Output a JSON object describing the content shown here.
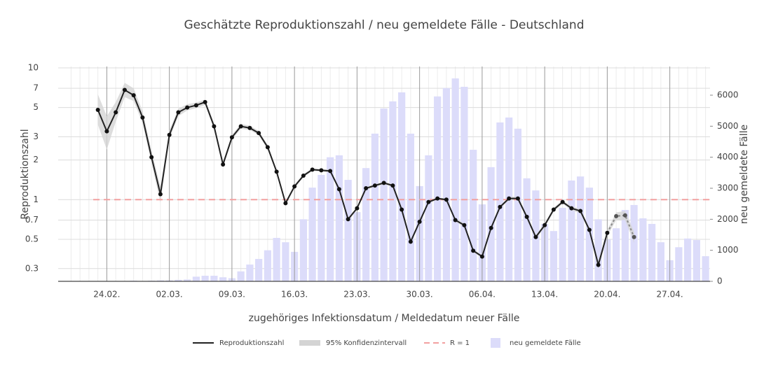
{
  "chart_data": {
    "type": "line_bar",
    "title": "Geschätzte Reproduktionszahl / neu gemeldete Fälle - Deutschland",
    "xlabel": "zugehöriges Infektionsdatum / Meldedatum neuer Fälle",
    "ylabel": "Reproduktionszahl",
    "y2label": "neu gemeldete Fälle",
    "categories": [
      null,
      null,
      null,
      null,
      "24.02.",
      null,
      null,
      null,
      null,
      null,
      null,
      "02.03.",
      null,
      null,
      null,
      null,
      null,
      null,
      "09.03.",
      null,
      null,
      null,
      null,
      null,
      null,
      "16.03.",
      null,
      null,
      null,
      null,
      null,
      null,
      "23.03.",
      null,
      null,
      null,
      null,
      null,
      null,
      "30.03.",
      null,
      null,
      null,
      null,
      null,
      null,
      "06.04.",
      null,
      null,
      null,
      null,
      null,
      null,
      "13.04.",
      null,
      null,
      null,
      null,
      null,
      null,
      "20.04.",
      null,
      null,
      null,
      null,
      null,
      null,
      "27.04.",
      null,
      null,
      null,
      null
    ],
    "series": [
      {
        "name": "Reproduktionszahl",
        "color": "#222222",
        "dash_from": 60,
        "values": [
          null,
          null,
          null,
          4.8,
          3.3,
          4.6,
          6.8,
          6.2,
          4.2,
          2.1,
          1.1,
          3.1,
          4.6,
          5.0,
          5.2,
          5.5,
          3.6,
          1.85,
          2.97,
          3.6,
          3.5,
          3.2,
          2.5,
          1.63,
          0.94,
          1.26,
          1.52,
          1.69,
          1.67,
          1.65,
          1.2,
          0.71,
          0.86,
          1.22,
          1.28,
          1.34,
          1.28,
          0.84,
          0.48,
          0.68,
          0.96,
          1.02,
          1.0,
          0.7,
          0.64,
          0.41,
          0.37,
          0.61,
          0.88,
          1.02,
          1.02,
          0.74,
          0.52,
          0.64,
          0.84,
          0.96,
          0.86,
          0.82,
          0.59,
          0.32,
          0.56,
          0.75,
          0.76,
          0.52,
          null,
          null,
          null,
          null,
          null,
          null,
          null,
          null
        ]
      },
      {
        "name": "95% Konfidenzintervall",
        "color": "#d4d4d4",
        "upper": [
          null,
          null,
          null,
          6.3,
          4.3,
          5.5,
          7.7,
          7.0,
          4.7,
          2.35,
          1.25,
          3.35,
          4.9,
          5.3,
          5.45,
          5.75,
          3.8,
          1.95,
          3.1,
          3.75,
          3.65,
          3.32,
          2.6,
          1.69,
          0.97,
          1.3,
          1.56,
          1.73,
          1.71,
          1.69,
          1.23,
          0.73,
          0.88,
          1.25,
          1.31,
          1.37,
          1.31,
          0.86,
          0.49,
          0.7,
          0.98,
          1.04,
          1.02,
          0.72,
          0.66,
          0.42,
          0.38,
          0.63,
          0.9,
          1.05,
          1.05,
          0.76,
          0.54,
          0.66,
          0.87,
          0.99,
          0.89,
          0.85,
          0.61,
          0.34,
          0.59,
          0.8,
          0.82,
          0.57,
          null,
          null,
          null,
          null,
          null,
          null,
          null,
          null
        ],
        "lower": [
          null,
          null,
          null,
          3.7,
          2.4,
          3.9,
          6.0,
          5.6,
          3.8,
          1.9,
          0.95,
          2.9,
          4.3,
          4.75,
          4.95,
          5.25,
          3.45,
          1.76,
          2.85,
          3.45,
          3.38,
          3.08,
          2.41,
          1.58,
          0.91,
          1.22,
          1.48,
          1.65,
          1.63,
          1.61,
          1.17,
          0.69,
          0.84,
          1.19,
          1.25,
          1.31,
          1.25,
          0.82,
          0.47,
          0.66,
          0.94,
          1.0,
          0.98,
          0.68,
          0.62,
          0.4,
          0.36,
          0.59,
          0.86,
          0.99,
          0.99,
          0.72,
          0.5,
          0.62,
          0.81,
          0.93,
          0.83,
          0.79,
          0.57,
          0.3,
          0.53,
          0.7,
          0.7,
          0.47,
          null,
          null,
          null,
          null,
          null,
          null,
          null,
          null
        ]
      },
      {
        "name": "R = 1",
        "color": "#f2a0a0",
        "value": 1
      },
      {
        "name": "neu gemeldete Fälle",
        "color": "#dcdcfa",
        "axis": "y2",
        "values": [
          0,
          0,
          0,
          0,
          0,
          5,
          10,
          20,
          10,
          20,
          30,
          30,
          50,
          60,
          150,
          180,
          180,
          130,
          100,
          320,
          540,
          720,
          1000,
          1400,
          1260,
          950,
          2000,
          3020,
          3430,
          4000,
          4060,
          3270,
          2230,
          3650,
          4760,
          5570,
          5800,
          6090,
          4760,
          3070,
          4060,
          5960,
          6230,
          6540,
          6270,
          4240,
          2480,
          3680,
          5120,
          5280,
          4920,
          3320,
          2930,
          1850,
          1620,
          2370,
          3250,
          3380,
          3020,
          2000,
          1350,
          1710,
          2300,
          2460,
          2030,
          1850,
          1260,
          680,
          1100,
          1380,
          1330,
          810
        ]
      }
    ],
    "ylog": true,
    "ylim": [
      0.24,
      10
    ],
    "yticks": [
      0.3,
      0.5,
      0.7,
      1,
      2,
      3,
      5,
      7,
      10
    ],
    "y2lim": [
      0,
      6880
    ],
    "y2ticks": [
      0,
      1000,
      2000,
      3000,
      4000,
      5000,
      6000
    ],
    "grid": true
  }
}
